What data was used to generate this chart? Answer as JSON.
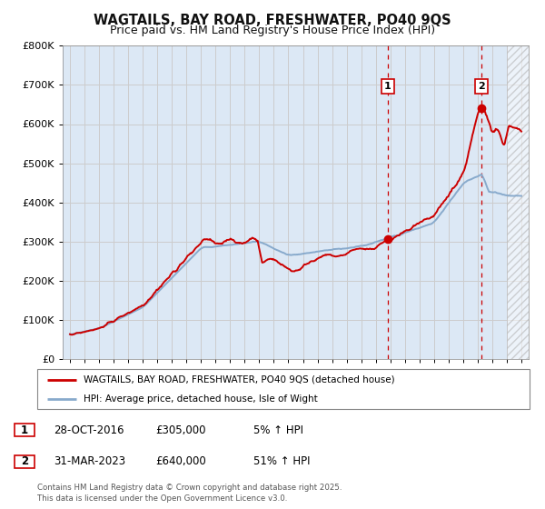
{
  "title": "WAGTAILS, BAY ROAD, FRESHWATER, PO40 9QS",
  "subtitle": "Price paid vs. HM Land Registry's House Price Index (HPI)",
  "ylim": [
    0,
    800000
  ],
  "xlim": [
    1994.5,
    2026.5
  ],
  "yticks": [
    0,
    100000,
    200000,
    300000,
    400000,
    500000,
    600000,
    700000,
    800000
  ],
  "ytick_labels": [
    "£0",
    "£100K",
    "£200K",
    "£300K",
    "£400K",
    "£500K",
    "£600K",
    "£700K",
    "£800K"
  ],
  "xticks": [
    1995,
    1996,
    1997,
    1998,
    1999,
    2000,
    2001,
    2002,
    2003,
    2004,
    2005,
    2006,
    2007,
    2008,
    2009,
    2010,
    2011,
    2012,
    2013,
    2014,
    2015,
    2016,
    2017,
    2018,
    2019,
    2020,
    2021,
    2022,
    2023,
    2024,
    2025,
    2026
  ],
  "grid_color": "#cccccc",
  "plot_bg": "#dce8f5",
  "fig_bg": "#ffffff",
  "red_line_color": "#cc0000",
  "blue_line_color": "#88aacc",
  "marker1_date": 2016.83,
  "marker1_value": 305000,
  "marker2_date": 2023.25,
  "marker2_value": 640000,
  "dashed_line_color": "#cc0000",
  "hatch_start": 2025.0,
  "hatch_color": "#aaaaaa",
  "legend_label_red": "WAGTAILS, BAY ROAD, FRESHWATER, PO40 9QS (detached house)",
  "legend_label_blue": "HPI: Average price, detached house, Isle of Wight",
  "table_row1": [
    "1",
    "28-OCT-2016",
    "£305,000",
    "5% ↑ HPI"
  ],
  "table_row2": [
    "2",
    "31-MAR-2023",
    "£640,000",
    "51% ↑ HPI"
  ],
  "footnote": "Contains HM Land Registry data © Crown copyright and database right 2025.\nThis data is licensed under the Open Government Licence v3.0.",
  "title_fontsize": 10.5,
  "subtitle_fontsize": 9
}
